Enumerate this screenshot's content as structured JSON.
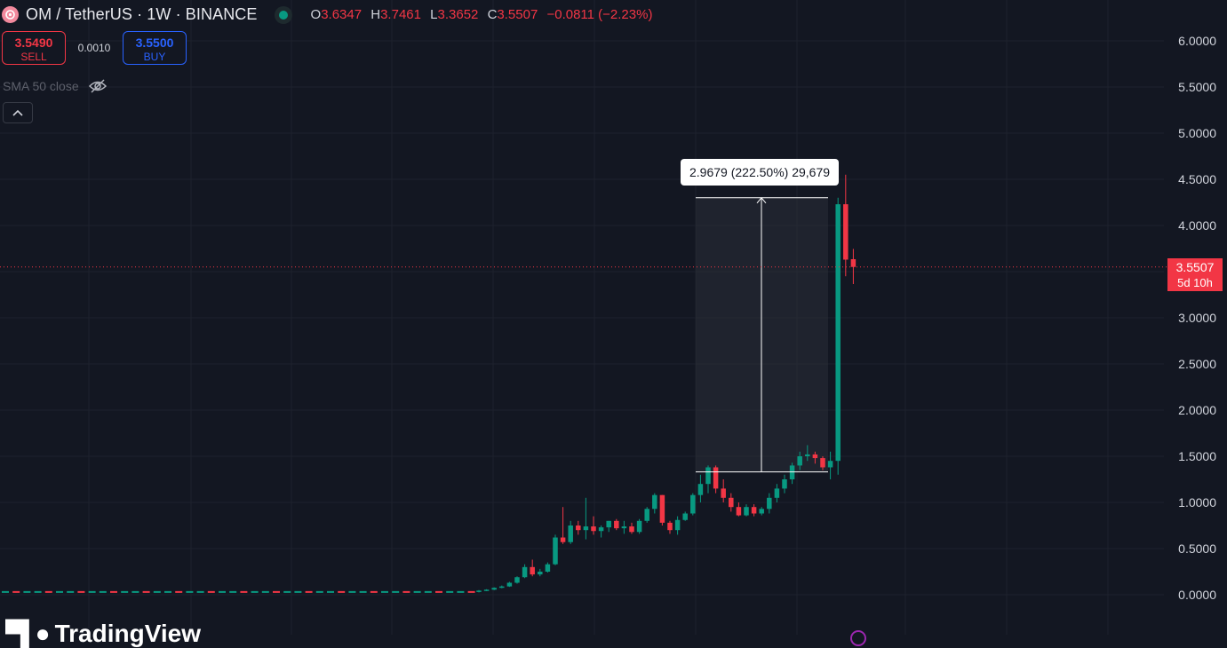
{
  "header": {
    "symbol_title": "OM / TetherUS · 1W · BINANCE",
    "ohlc": {
      "o_label": "O",
      "o_value": "3.6347",
      "h_label": "H",
      "h_value": "3.7461",
      "l_label": "L",
      "l_value": "3.3652",
      "c_label": "C",
      "c_value": "3.5507",
      "change": "−0.0811 (−2.23%)"
    }
  },
  "trade": {
    "sell_price": "3.5490",
    "sell_label": "SELL",
    "spread": "0.0010",
    "buy_price": "3.5500",
    "buy_label": "BUY"
  },
  "indicator": {
    "label": "SMA 50 close"
  },
  "price_axis": [
    "6.0000",
    "5.5000",
    "5.0000",
    "4.5000",
    "4.0000",
    "3.5000",
    "3.0000",
    "2.5000",
    "2.0000",
    "1.5000",
    "1.0000",
    "0.5000",
    "0.0000"
  ],
  "last_price": {
    "value": "3.5507",
    "countdown": "5d 10h"
  },
  "measure_tool": {
    "label": "2.9679 (222.50%) 29,679"
  },
  "watermark": {
    "text": "TradingView"
  },
  "colors": {
    "up": "#089981",
    "down": "#f23645",
    "background": "#131722",
    "accent": "#2962ff"
  },
  "chart_data": {
    "type": "candlestick",
    "ylim": [
      -0.05,
      6.2
    ],
    "grid": true,
    "last_price": 3.5507,
    "measure": {
      "from": 1.33,
      "to": 4.3
    },
    "flat_start": {
      "count": 44,
      "value": 0.03
    },
    "candles": [
      [
        0.03,
        0.05,
        0.025,
        0.045
      ],
      [
        0.045,
        0.06,
        0.04,
        0.055
      ],
      [
        0.055,
        0.08,
        0.05,
        0.075
      ],
      [
        0.075,
        0.1,
        0.07,
        0.09
      ],
      [
        0.09,
        0.14,
        0.085,
        0.13
      ],
      [
        0.13,
        0.2,
        0.12,
        0.19
      ],
      [
        0.19,
        0.33,
        0.18,
        0.3
      ],
      [
        0.3,
        0.38,
        0.2,
        0.22
      ],
      [
        0.22,
        0.28,
        0.2,
        0.25
      ],
      [
        0.25,
        0.35,
        0.24,
        0.33
      ],
      [
        0.33,
        0.65,
        0.32,
        0.62
      ],
      [
        0.62,
        0.95,
        0.55,
        0.57
      ],
      [
        0.57,
        0.8,
        0.55,
        0.75
      ],
      [
        0.75,
        0.8,
        0.65,
        0.7
      ],
      [
        0.7,
        1.05,
        0.6,
        0.74
      ],
      [
        0.74,
        0.85,
        0.65,
        0.69
      ],
      [
        0.69,
        0.75,
        0.62,
        0.73
      ],
      [
        0.73,
        0.8,
        0.68,
        0.8
      ],
      [
        0.8,
        0.82,
        0.7,
        0.72
      ],
      [
        0.72,
        0.8,
        0.66,
        0.74
      ],
      [
        0.74,
        0.78,
        0.66,
        0.68
      ],
      [
        0.68,
        0.82,
        0.66,
        0.8
      ],
      [
        0.8,
        0.95,
        0.78,
        0.93
      ],
      [
        0.93,
        1.1,
        0.88,
        1.08
      ],
      [
        1.08,
        1.08,
        0.75,
        0.78
      ],
      [
        0.78,
        0.8,
        0.66,
        0.7
      ],
      [
        0.7,
        0.85,
        0.65,
        0.81
      ],
      [
        0.81,
        0.9,
        0.8,
        0.88
      ],
      [
        0.88,
        1.1,
        0.86,
        1.08
      ],
      [
        1.08,
        1.3,
        1.0,
        1.2
      ],
      [
        1.2,
        1.4,
        1.1,
        1.38
      ],
      [
        1.38,
        1.4,
        1.1,
        1.15
      ],
      [
        1.15,
        1.25,
        1.0,
        1.05
      ],
      [
        1.05,
        1.1,
        0.9,
        0.95
      ],
      [
        0.95,
        1.0,
        0.85,
        0.86
      ],
      [
        0.86,
        0.98,
        0.85,
        0.95
      ],
      [
        0.95,
        0.98,
        0.85,
        0.88
      ],
      [
        0.88,
        0.95,
        0.86,
        0.93
      ],
      [
        0.93,
        1.1,
        0.88,
        1.05
      ],
      [
        1.05,
        1.2,
        1.0,
        1.15
      ],
      [
        1.15,
        1.3,
        1.1,
        1.25
      ],
      [
        1.25,
        1.43,
        1.2,
        1.4
      ],
      [
        1.4,
        1.55,
        1.35,
        1.5
      ],
      [
        1.5,
        1.62,
        1.45,
        1.52
      ],
      [
        1.52,
        1.55,
        1.42,
        1.48
      ],
      [
        1.48,
        1.5,
        1.35,
        1.38
      ],
      [
        1.38,
        1.55,
        1.25,
        1.45
      ],
      [
        1.45,
        4.3,
        1.3,
        4.23
      ],
      [
        4.23,
        4.55,
        3.45,
        3.63
      ],
      [
        3.6347,
        3.7461,
        3.3652,
        3.5507
      ]
    ]
  }
}
